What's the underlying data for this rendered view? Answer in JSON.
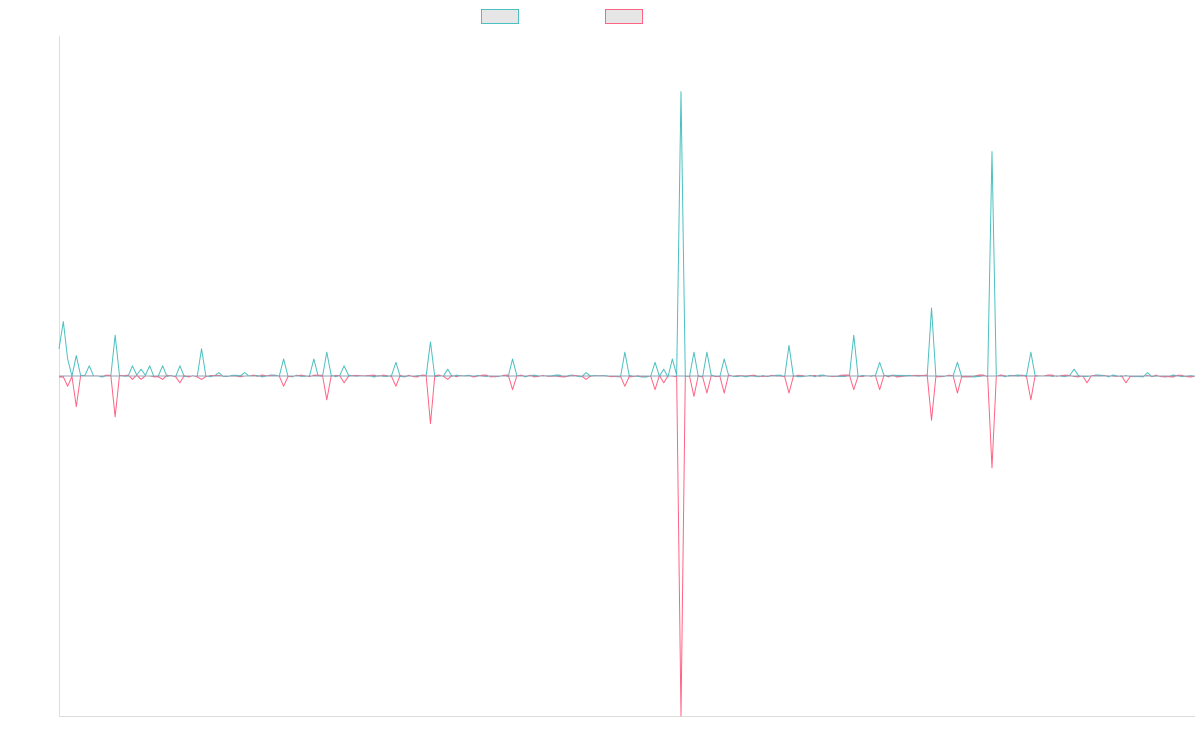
{
  "chart_data": {
    "type": "line",
    "title": "",
    "xlabel": "",
    "ylabel": "",
    "ylim": [
      -1,
      1
    ],
    "grid": false,
    "legend_position": "top-center",
    "series": [
      {
        "name": "",
        "color": "#4bc0c0",
        "fill": "#e6e6e6",
        "events": [
          [
            0.0,
            0.08
          ],
          [
            1.0,
            0.16
          ],
          [
            2.0,
            0.05
          ],
          [
            4.0,
            0.06
          ],
          [
            7.0,
            0.03
          ],
          [
            13.0,
            0.12
          ],
          [
            17.0,
            0.03
          ],
          [
            19.0,
            0.02
          ],
          [
            21.0,
            0.03
          ],
          [
            24.0,
            0.03
          ],
          [
            28.0,
            0.03
          ],
          [
            33.0,
            0.08
          ],
          [
            37.0,
            0.01
          ],
          [
            43.0,
            0.01
          ],
          [
            52.0,
            0.05
          ],
          [
            59.0,
            0.05
          ],
          [
            62.0,
            0.07
          ],
          [
            66.0,
            0.03
          ],
          [
            78.0,
            0.04
          ],
          [
            86.0,
            0.1
          ],
          [
            90.0,
            0.02
          ],
          [
            105.0,
            0.05
          ],
          [
            122.0,
            0.01
          ],
          [
            131.0,
            0.07
          ],
          [
            138.0,
            0.04
          ],
          [
            140.0,
            0.02
          ],
          [
            142.0,
            0.05
          ],
          [
            144.0,
            0.836
          ],
          [
            147.0,
            0.07
          ],
          [
            150.0,
            0.07
          ],
          [
            154.0,
            0.05
          ],
          [
            169.0,
            0.09
          ],
          [
            184.0,
            0.12
          ],
          [
            190.0,
            0.04
          ],
          [
            202.0,
            0.2
          ],
          [
            208.0,
            0.04
          ],
          [
            216.0,
            0.66
          ],
          [
            225.0,
            0.07
          ],
          [
            235.0,
            0.02
          ],
          [
            252.0,
            0.01
          ]
        ]
      },
      {
        "name": "",
        "color": "#ff6384",
        "fill": "#e6e6e6",
        "events": [
          [
            2.0,
            -0.03
          ],
          [
            4.0,
            -0.09
          ],
          [
            13.0,
            -0.12
          ],
          [
            17.0,
            -0.01
          ],
          [
            19.0,
            -0.01
          ],
          [
            24.0,
            -0.01
          ],
          [
            28.0,
            -0.02
          ],
          [
            33.0,
            -0.01
          ],
          [
            52.0,
            -0.03
          ],
          [
            62.0,
            -0.07
          ],
          [
            66.0,
            -0.02
          ],
          [
            78.0,
            -0.03
          ],
          [
            86.0,
            -0.14
          ],
          [
            90.0,
            -0.01
          ],
          [
            105.0,
            -0.04
          ],
          [
            122.0,
            -0.01
          ],
          [
            131.0,
            -0.03
          ],
          [
            138.0,
            -0.04
          ],
          [
            140.0,
            -0.02
          ],
          [
            144.0,
            -1.0
          ],
          [
            147.0,
            -0.06
          ],
          [
            150.0,
            -0.05
          ],
          [
            154.0,
            -0.05
          ],
          [
            169.0,
            -0.05
          ],
          [
            184.0,
            -0.04
          ],
          [
            190.0,
            -0.04
          ],
          [
            202.0,
            -0.13
          ],
          [
            208.0,
            -0.05
          ],
          [
            216.0,
            -0.27
          ],
          [
            225.0,
            -0.07
          ],
          [
            238.0,
            -0.02
          ],
          [
            247.0,
            -0.02
          ]
        ]
      }
    ]
  }
}
